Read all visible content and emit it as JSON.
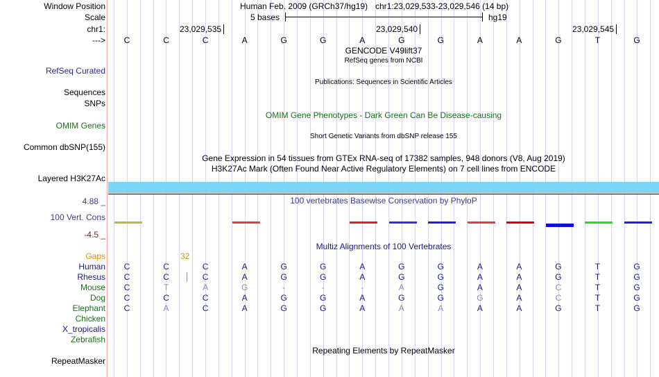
{
  "labels": {
    "window_position": "Window Position",
    "scale": "Scale",
    "chr": "chr1:",
    "arrow": "--->",
    "refseq": "RefSeq Curated",
    "sequences": "Sequences",
    "snps": "SNPs",
    "omim": "OMIM Genes",
    "dbsnp": "Common dbSNP(155)",
    "h3k27ac": "Layered H3K27Ac",
    "cons_max": "4.88 _",
    "cons": "100 Vert. Cons",
    "cons_min": "-4.5 _",
    "gaps": "Gaps",
    "repeatmasker": "RepeatMasker"
  },
  "header": {
    "assembly": "Human Feb. 2009 (GRCh37/hg19)",
    "position": "chr1:23,029,533-23,029,546 (14 bp)",
    "scale_label": "5 bases",
    "scale_db": "hg19",
    "ticks": [
      "23,029,535",
      "23,029,540",
      "23,029,545"
    ]
  },
  "sequence": [
    "C",
    "C",
    "C",
    "A",
    "G",
    "G",
    "A",
    "G",
    "G",
    "A",
    "A",
    "G",
    "T",
    "G"
  ],
  "tracks": {
    "gencode": "GENCODE V49lift37",
    "refseq_sub": "RefSeq genes from NCBI",
    "publications": "Publications: Sequences in Scientific Articles",
    "omim_title": "OMIM Gene Phenotypes - Dark Green Can Be Disease-causing",
    "dbsnp_title": "Short Genetic Variants from dbSNP release 155",
    "gtex": "Gene Expression in 54 tissues from GTEx RNA-seq of 17382 samples, 948 donors (V8, Aug 2019)",
    "h3k27ac_title": "H3K27Ac Mark (Often Found Near Active Regulatory Elements) on 7 cell lines from ENCODE",
    "phylop": "100 vertebrates Basewise Conservation by PhyloP",
    "multiz": "Multiz Alignments of 100 Vertebrates",
    "gap_count": "32",
    "repeat": "Repeating Elements by RepeatMasker"
  },
  "species": [
    {
      "name": "Human",
      "color": "#1a1a80",
      "bases": "CCCAGGAGGAAGTG"
    },
    {
      "name": "Rhesus",
      "color": "#1a1a80",
      "bases": "CCCAGGAGGAAGTG"
    },
    {
      "name": "Mouse",
      "color": "#1a701a",
      "bases": "Ctag---aGAAcTG"
    },
    {
      "name": "Dog",
      "color": "#1a701a",
      "bases": "CCCAGGAGGgAcTG"
    },
    {
      "name": "Elephant",
      "color": "#1a701a",
      "bases": "CaCAGGAaaAAGTG"
    },
    {
      "name": "Chicken",
      "color": "#1a701a",
      "bases": ""
    },
    {
      "name": "X_tropicalis",
      "color": "#1a1a80",
      "bases": ""
    },
    {
      "name": "Zebrafish",
      "color": "#1a701a",
      "bases": ""
    }
  ],
  "phylop_colors": [
    "#b8b840",
    "",
    "",
    "#e04040",
    "",
    "",
    "#e02020",
    "#3030e0",
    "#2020e0",
    "#e04040",
    "#e00000",
    "#1010e0",
    "#20e020",
    "#2020e0"
  ]
}
